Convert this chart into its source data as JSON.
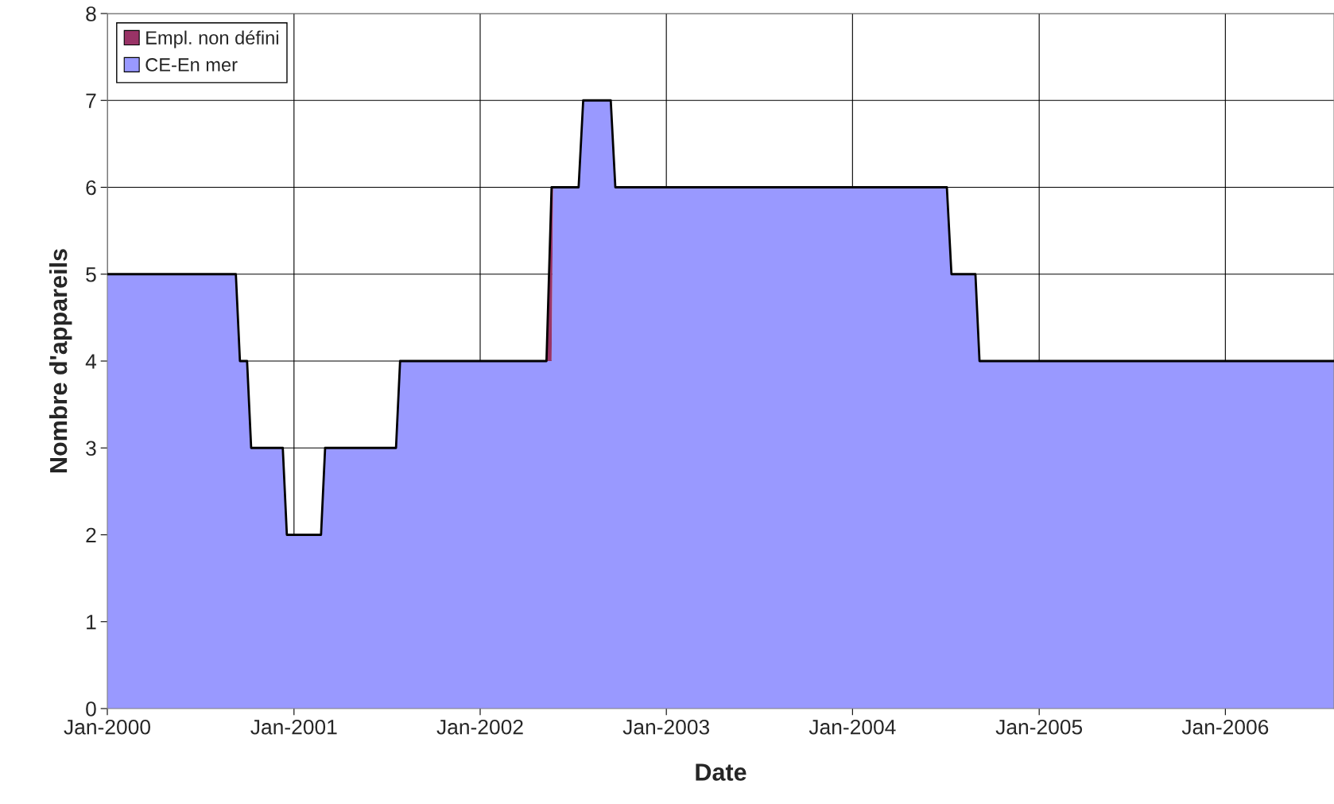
{
  "chart_data": {
    "type": "area",
    "stacked": true,
    "xlabel": "Date",
    "ylabel": "Nombre d'appareils",
    "x": [
      "2000-01-01",
      "2000-09-09",
      "2000-09-17",
      "2000-10-01",
      "2000-10-09",
      "2000-12-10",
      "2000-12-18",
      "2001-02-23",
      "2001-03-03",
      "2001-07-20",
      "2001-07-28",
      "2002-05-11",
      "2002-05-21",
      "2002-05-24",
      "2002-07-13",
      "2002-07-22",
      "2002-09-14",
      "2002-09-23",
      "2004-07-04",
      "2004-07-13",
      "2004-08-29",
      "2004-09-06",
      "2006-08-02"
    ],
    "series": [
      {
        "name": "CE-En mer",
        "color": "#9999ff",
        "values": [
          5,
          5,
          4,
          4,
          3,
          3,
          2,
          2,
          3,
          3,
          4,
          4,
          4,
          6,
          6,
          7,
          7,
          6,
          6,
          5,
          5,
          4,
          4
        ]
      },
      {
        "name": "Empl. non défini",
        "color": "#993366",
        "values": [
          0,
          0,
          0,
          0,
          0,
          0,
          0,
          0,
          0,
          0,
          0,
          0,
          2,
          0,
          0,
          0,
          0,
          0,
          0,
          0,
          0,
          0,
          0
        ]
      }
    ],
    "xlim": [
      "2000-01-01",
      "2006-08-02"
    ],
    "xticks": [
      {
        "value": "2000-01-01",
        "label": "Jan-2000"
      },
      {
        "value": "2001-01-01",
        "label": "Jan-2001"
      },
      {
        "value": "2002-01-01",
        "label": "Jan-2002"
      },
      {
        "value": "2003-01-01",
        "label": "Jan-2003"
      },
      {
        "value": "2004-01-01",
        "label": "Jan-2004"
      },
      {
        "value": "2005-01-01",
        "label": "Jan-2005"
      },
      {
        "value": "2006-01-01",
        "label": "Jan-2006"
      }
    ],
    "ylim": [
      0,
      8
    ],
    "yticks": [
      0,
      1,
      2,
      3,
      4,
      5,
      6,
      7,
      8
    ],
    "grid": true,
    "legend": "top left"
  }
}
